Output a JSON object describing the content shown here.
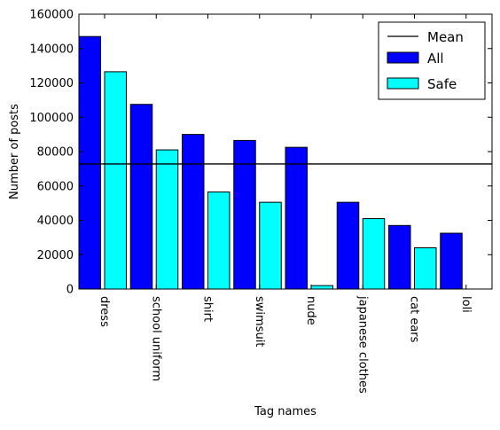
{
  "chart_data": {
    "type": "bar",
    "title": "",
    "xlabel": "Tag names",
    "ylabel": "Number of posts",
    "ylim": [
      0,
      160000
    ],
    "yticks": [
      0,
      20000,
      40000,
      60000,
      80000,
      100000,
      120000,
      140000,
      160000
    ],
    "categories": [
      "dress",
      "school uniform",
      "shirt",
      "swimsuit",
      "nude",
      "japanese clothes",
      "cat ears",
      "loli"
    ],
    "series": [
      {
        "name": "All",
        "color": "#0000ff",
        "values": [
          147000,
          107500,
          90000,
          86500,
          82500,
          50500,
          37000,
          32500
        ]
      },
      {
        "name": "Safe",
        "color": "#00ffff",
        "values": [
          126500,
          81000,
          56500,
          50500,
          2000,
          41000,
          24000,
          0
        ]
      }
    ],
    "mean": {
      "name": "Mean",
      "value": 72800,
      "color": "#000000"
    },
    "grid": false,
    "legend_position": "top-right"
  }
}
